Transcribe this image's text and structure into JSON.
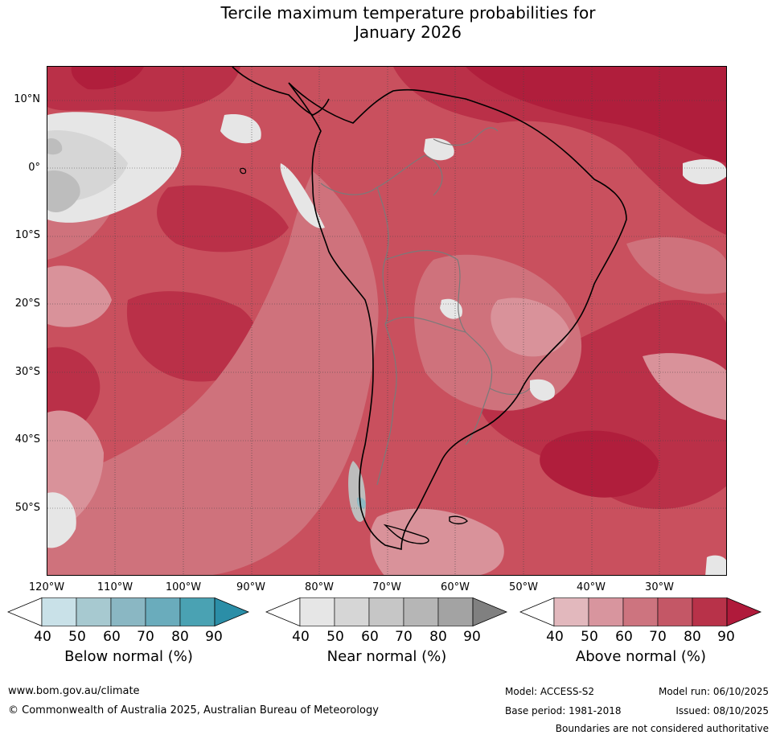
{
  "title": {
    "line1": "Tercile maximum temperature probabilities for",
    "line2": "January 2026"
  },
  "map": {
    "latitude_labels": [
      "10°N",
      "0°",
      "10°S",
      "20°S",
      "30°S",
      "40°S",
      "50°S"
    ],
    "longitude_labels": [
      "120°W",
      "110°W",
      "100°W",
      "90°W",
      "80°W",
      "70°W",
      "60°W",
      "50°W",
      "40°W",
      "30°W"
    ],
    "colors": {
      "ocean_base": "#c9505e",
      "above_50": "#d9929a",
      "above_60": "#cf727c",
      "above_70": "#c85563",
      "above_80": "#ba3048",
      "above_90": "#b01e3c",
      "near_40": "#e6e6e6",
      "near_50": "#d6d6d6",
      "near_60": "#bdbdbd",
      "below_60": "#8fbac4",
      "coast": "#000000",
      "border": "#7a7a7a"
    }
  },
  "colorbars": [
    {
      "name": "below",
      "title": "Below normal (%)",
      "ticks": [
        "40",
        "50",
        "60",
        "70",
        "80",
        "90"
      ],
      "colors": [
        "#ffffff",
        "#c9e1e8",
        "#a7c9d0",
        "#8ab7c3",
        "#6aacbc",
        "#4aa2b3",
        "#2b8ea7"
      ]
    },
    {
      "name": "near",
      "title": "Near normal (%)",
      "ticks": [
        "40",
        "50",
        "60",
        "70",
        "80",
        "90"
      ],
      "colors": [
        "#ffffff",
        "#e6e6e6",
        "#d6d6d6",
        "#c6c6c6",
        "#b6b6b6",
        "#a3a3a3",
        "#808080"
      ]
    },
    {
      "name": "above",
      "title": "Above normal (%)",
      "ticks": [
        "40",
        "50",
        "60",
        "70",
        "80",
        "90"
      ],
      "colors": [
        "#ffffff",
        "#e2b8bd",
        "#d8959e",
        "#cd747f",
        "#c45766",
        "#b83249",
        "#b01a3b"
      ]
    }
  ],
  "footer": {
    "website": "www.bom.gov.au/climate",
    "copyright": "© Commonwealth of Australia 2025, Australian Bureau of Meteorology",
    "model": "Model: ACCESS-S2",
    "model_run": "Model run: 06/10/2025",
    "base_period": "Base period: 1981-2018",
    "issued": "Issued: 08/10/2025",
    "disclaimer": "Boundaries are not considered authoritative"
  }
}
